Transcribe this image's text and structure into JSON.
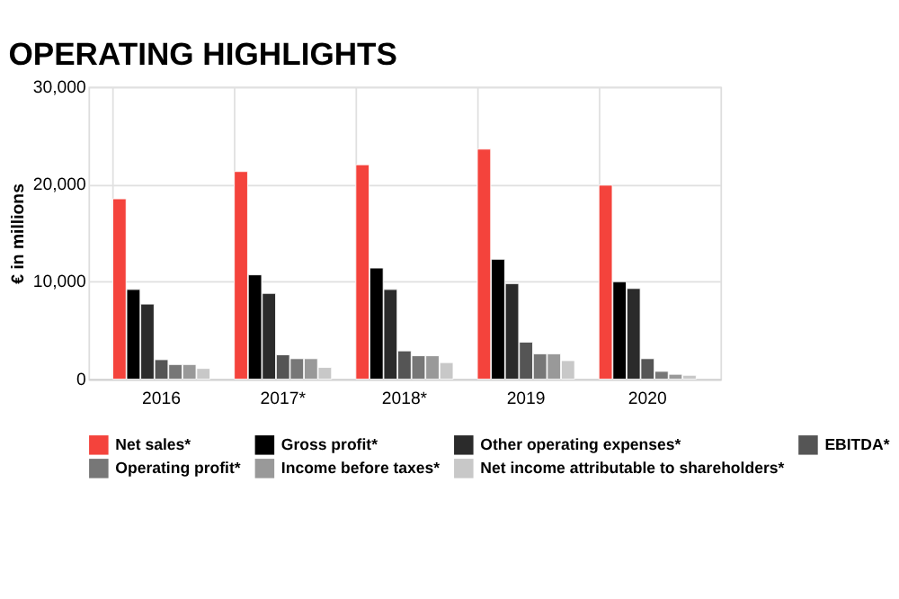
{
  "chart_data": {
    "type": "bar",
    "title": "OPERATING HIGHLIGHTS",
    "ylabel": "€ in millions",
    "categories": [
      "2016",
      "2017*",
      "2018*",
      "2019",
      "2020"
    ],
    "series": [
      {
        "name": "Net sales*",
        "color": "#f4433c",
        "values": [
          18500,
          21300,
          22000,
          23600,
          19900
        ]
      },
      {
        "name": "Gross profit*",
        "color": "#000000",
        "values": [
          9200,
          10700,
          11400,
          12300,
          10000
        ]
      },
      {
        "name": "Other operating expenses*",
        "color": "#2b2b2b",
        "values": [
          7700,
          8800,
          9200,
          9800,
          9300
        ]
      },
      {
        "name": "EBITDA*",
        "color": "#555555",
        "values": [
          2000,
          2500,
          2900,
          3800,
          2100
        ]
      },
      {
        "name": "Operating profit*",
        "color": "#777777",
        "values": [
          1500,
          2100,
          2400,
          2600,
          800
        ]
      },
      {
        "name": "Income before taxes*",
        "color": "#999999",
        "values": [
          1500,
          2100,
          2400,
          2600,
          500
        ]
      },
      {
        "name": "Net income attributable to shareholders*",
        "color": "#c8c8c8",
        "values": [
          1100,
          1200,
          1700,
          1900,
          400
        ]
      }
    ],
    "ylim": [
      0,
      30000
    ],
    "yticks": [
      0,
      {
        "value": 10000,
        "label": "10,000"
      },
      {
        "value": 20000,
        "label": "20,000"
      },
      {
        "value": 30000,
        "label": "30,000"
      }
    ],
    "grid": true,
    "legend": "bottom"
  }
}
